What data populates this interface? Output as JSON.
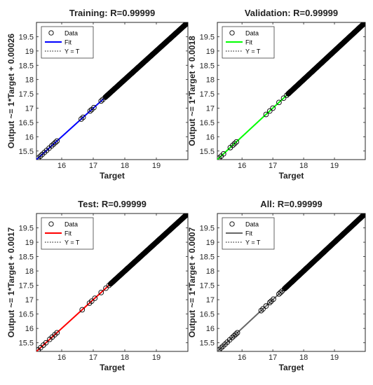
{
  "chart_data": [
    {
      "type": "scatter",
      "title": "Training: R=0.99999",
      "xlabel": "Target",
      "ylabel": "Output ~= 1*Target + 0.00026",
      "xlim": [
        15.2,
        20.0
      ],
      "ylim": [
        15.2,
        20.0
      ],
      "xticks": [
        "16",
        "17",
        "18",
        "19"
      ],
      "yticks": [
        "15.5",
        "16",
        "16.5",
        "17",
        "17.5",
        "18",
        "18.5",
        "19",
        "19.5"
      ],
      "fit_color": "#0000ff",
      "fit_slope": 1,
      "fit_intercept": 0.00026,
      "legend": {
        "position": "top-left",
        "entries": [
          "Data",
          "Fit",
          "Y = T"
        ]
      },
      "points_x": [
        15.25,
        15.32,
        15.38,
        15.45,
        15.52,
        15.6,
        15.68,
        15.74,
        15.8,
        15.85,
        16.62,
        16.68,
        16.9,
        16.95,
        17.02,
        17.25,
        17.3,
        17.38,
        17.45
      ],
      "dense_range": [
        17.4,
        20.0
      ]
    },
    {
      "type": "scatter",
      "title": "Validation: R=0.99999",
      "xlabel": "Target",
      "ylabel": "Output ~= 1*Target + 0.0018",
      "xlim": [
        15.2,
        20.0
      ],
      "ylim": [
        15.2,
        20.0
      ],
      "xticks": [
        "16",
        "17",
        "18",
        "19"
      ],
      "yticks": [
        "15.5",
        "16",
        "16.5",
        "17",
        "17.5",
        "18",
        "18.5",
        "19",
        "19.5"
      ],
      "fit_color": "#00ff00",
      "fit_slope": 1,
      "fit_intercept": 0.0018,
      "legend": {
        "position": "top-left",
        "entries": [
          "Data",
          "Fit",
          "Y = T"
        ]
      },
      "points_x": [
        15.25,
        15.32,
        15.4,
        15.62,
        15.7,
        15.76,
        15.82,
        16.78,
        16.9,
        17.0,
        17.2,
        17.35,
        17.45,
        17.52
      ],
      "dense_range": [
        17.5,
        20.0
      ]
    },
    {
      "type": "scatter",
      "title": "Test: R=0.99999",
      "xlabel": "Target",
      "ylabel": "Output ~= 1*Target + 0.0017",
      "xlim": [
        15.2,
        20.0
      ],
      "ylim": [
        15.2,
        20.0
      ],
      "xticks": [
        "16",
        "17",
        "18",
        "19"
      ],
      "yticks": [
        "15.5",
        "16",
        "16.5",
        "17",
        "17.5",
        "18",
        "18.5",
        "19",
        "19.5"
      ],
      "fit_color": "#ff0000",
      "fit_slope": 1,
      "fit_intercept": 0.0017,
      "legend": {
        "position": "top-left",
        "entries": [
          "Data",
          "Fit",
          "Y = T"
        ]
      },
      "points_x": [
        15.25,
        15.33,
        15.42,
        15.5,
        15.62,
        15.7,
        15.78,
        15.85,
        16.65,
        16.88,
        16.95,
        17.05,
        17.25,
        17.4,
        17.5
      ],
      "dense_range": [
        17.55,
        20.0
      ]
    },
    {
      "type": "scatter",
      "title": "All: R=0.99999",
      "xlabel": "Target",
      "ylabel": "Output ~= 1*Target + 0.0007",
      "xlim": [
        15.2,
        20.0
      ],
      "ylim": [
        15.2,
        20.0
      ],
      "xticks": [
        "16",
        "17",
        "18",
        "19"
      ],
      "yticks": [
        "15.5",
        "16",
        "16.5",
        "17",
        "17.5",
        "18",
        "18.5",
        "19",
        "19.5"
      ],
      "fit_color": "#666666",
      "fit_slope": 1,
      "fit_intercept": 0.0007,
      "legend": {
        "position": "top-left",
        "entries": [
          "Data",
          "Fit",
          "Y = T"
        ]
      },
      "points_x": [
        15.25,
        15.32,
        15.38,
        15.45,
        15.52,
        15.6,
        15.68,
        15.74,
        15.8,
        15.85,
        16.62,
        16.68,
        16.78,
        16.9,
        16.95,
        17.02,
        17.2,
        17.25,
        17.3,
        17.38,
        17.45
      ],
      "dense_range": [
        17.4,
        20.0
      ]
    }
  ]
}
